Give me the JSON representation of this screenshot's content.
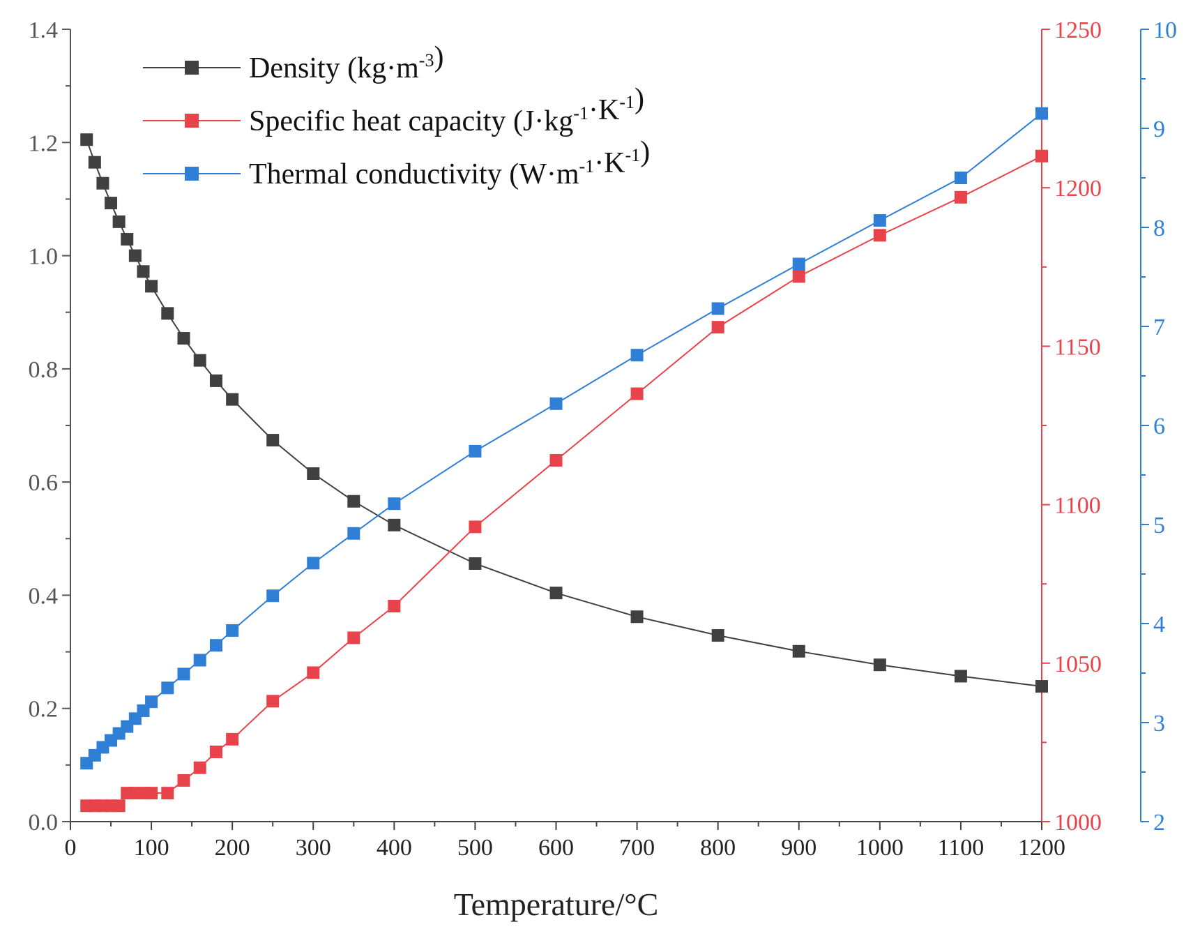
{
  "chart_data": {
    "type": "line",
    "title": "",
    "xlabel": "Temperature/°C",
    "xlim": [
      0,
      1200
    ],
    "x_ticks": [
      "0",
      "100",
      "200",
      "300",
      "400",
      "500",
      "600",
      "700",
      "800",
      "900",
      "1000",
      "1100",
      "1200"
    ],
    "x_tick_values": [
      0,
      100,
      200,
      300,
      400,
      500,
      600,
      700,
      800,
      900,
      1000,
      1100,
      1200
    ],
    "y_left": {
      "label": "",
      "lim": [
        0.0,
        1.4
      ],
      "ticks": [
        "0.0",
        "0.2",
        "0.4",
        "0.6",
        "0.8",
        "1.0",
        "1.2",
        "1.4"
      ],
      "tick_values": [
        0,
        0.2,
        0.4,
        0.6,
        0.8,
        1.0,
        1.2,
        1.4
      ],
      "color": "#555555"
    },
    "y_right1": {
      "label": "",
      "lim": [
        1000,
        1250
      ],
      "ticks": [
        "1000",
        "1050",
        "1100",
        "1150",
        "1200",
        "1250"
      ],
      "tick_values": [
        1000,
        1050,
        1100,
        1150,
        1200,
        1250
      ],
      "color": "#e8434b"
    },
    "y_right2": {
      "label": "",
      "lim": [
        2,
        10
      ],
      "ticks": [
        "2",
        "3",
        "4",
        "5",
        "6",
        "7",
        "8",
        "9",
        "10"
      ],
      "tick_values": [
        2,
        3,
        4,
        5,
        6,
        7,
        8,
        9,
        10
      ],
      "color": "#2f7fd6"
    },
    "legend_position": "top-left",
    "series": [
      {
        "name": "Density",
        "legend": {
          "prefix": "Density (kg·m",
          "sup1": "-3",
          "mid": ")",
          "sup2": "",
          "suffix": ""
        },
        "axis": "left",
        "color": "#404040",
        "x": [
          20,
          30,
          40,
          50,
          60,
          70,
          80,
          90,
          100,
          120,
          140,
          160,
          180,
          200,
          250,
          300,
          350,
          400,
          500,
          600,
          700,
          800,
          900,
          1000,
          1100,
          1200
        ],
        "values": [
          1.205,
          1.165,
          1.128,
          1.093,
          1.06,
          1.029,
          1.0,
          0.972,
          0.946,
          0.898,
          0.854,
          0.815,
          0.779,
          0.746,
          0.674,
          0.615,
          0.566,
          0.524,
          0.456,
          0.404,
          0.362,
          0.329,
          0.301,
          0.277,
          0.257,
          0.239
        ]
      },
      {
        "name": "Specific heat capacity",
        "legend": {
          "prefix": "Specific heat capacity (J·kg",
          "sup1": "-1",
          "mid": "·K",
          "sup2": "-1",
          "suffix": ")"
        },
        "axis": "right1",
        "color": "#e8434b",
        "x": [
          20,
          30,
          40,
          50,
          60,
          70,
          80,
          90,
          100,
          120,
          140,
          160,
          180,
          200,
          250,
          300,
          350,
          400,
          500,
          600,
          700,
          800,
          900,
          1000,
          1100,
          1200
        ],
        "values": [
          1005,
          1005,
          1005,
          1005,
          1005,
          1009,
          1009,
          1009,
          1009,
          1009,
          1013,
          1017,
          1022,
          1026,
          1038,
          1047,
          1058,
          1068,
          1093,
          1114,
          1135,
          1156,
          1172,
          1185,
          1197,
          1210
        ]
      },
      {
        "name": "Thermal conductivity",
        "legend": {
          "prefix": "Thermal conductivity (W·m",
          "sup1": "-1",
          "mid": "·K",
          "sup2": "-1",
          "suffix": ")"
        },
        "axis": "right2",
        "color": "#2f7fd6",
        "x": [
          20,
          30,
          40,
          50,
          60,
          70,
          80,
          90,
          100,
          120,
          140,
          160,
          180,
          200,
          250,
          300,
          350,
          400,
          500,
          600,
          700,
          800,
          900,
          1000,
          1100,
          1200
        ],
        "values": [
          2.59,
          2.67,
          2.75,
          2.82,
          2.89,
          2.96,
          3.04,
          3.12,
          3.21,
          3.35,
          3.49,
          3.63,
          3.78,
          3.93,
          4.28,
          4.61,
          4.91,
          5.21,
          5.74,
          6.22,
          6.71,
          7.18,
          7.63,
          8.07,
          8.5,
          9.15
        ]
      }
    ]
  }
}
